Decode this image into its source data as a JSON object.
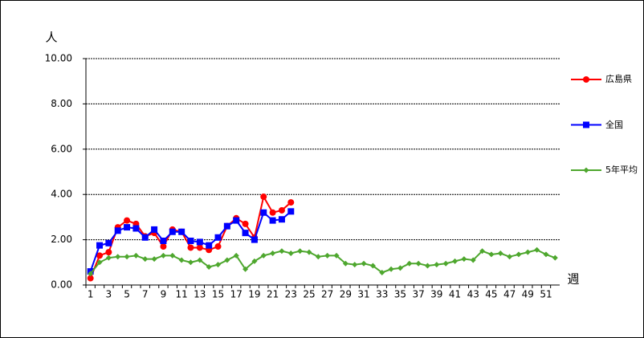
{
  "chart_data": {
    "type": "line",
    "y_label": "人",
    "x_label": "週",
    "categories": [
      1,
      null,
      3,
      null,
      5,
      null,
      7,
      null,
      9,
      null,
      11,
      null,
      13,
      null,
      15,
      null,
      17,
      null,
      19,
      null,
      21,
      null,
      23,
      null,
      25,
      null,
      27,
      null,
      29,
      null,
      31,
      null,
      33,
      null,
      35,
      null,
      37,
      null,
      39,
      null,
      41,
      null,
      43,
      null,
      45,
      null,
      47,
      null,
      49,
      null,
      51,
      null
    ],
    "ylim": [
      0,
      10
    ],
    "yticks": [
      {
        "value": 0,
        "label": "0.00"
      },
      {
        "value": 2,
        "label": "2.00"
      },
      {
        "value": 4,
        "label": "4.00"
      },
      {
        "value": 6,
        "label": "6.00"
      },
      {
        "value": 8,
        "label": "8.00"
      },
      {
        "value": 10,
        "label": "10.00"
      }
    ],
    "grid": true,
    "legend": "right",
    "series": [
      {
        "name": "広島県",
        "color": "#ff0000",
        "marker": "circle",
        "values": [
          0.3,
          1.3,
          1.45,
          2.55,
          2.85,
          2.7,
          2.15,
          2.3,
          1.7,
          2.45,
          2.35,
          1.65,
          1.65,
          1.55,
          1.7,
          2.6,
          2.95,
          2.7,
          2.1,
          3.9,
          3.2,
          3.3,
          3.65,
          null,
          null,
          null,
          null,
          null,
          null,
          null,
          null,
          null,
          null,
          null,
          null,
          null,
          null,
          null,
          null,
          null,
          null,
          null,
          null,
          null,
          null,
          null,
          null,
          null,
          null,
          null,
          null,
          null
        ]
      },
      {
        "name": "全国",
        "color": "#0000ff",
        "marker": "square",
        "values": [
          0.6,
          1.75,
          1.85,
          2.4,
          2.55,
          2.5,
          2.1,
          2.45,
          1.95,
          2.35,
          2.35,
          1.95,
          1.9,
          1.75,
          2.1,
          2.6,
          2.85,
          2.3,
          2.0,
          3.2,
          2.85,
          2.9,
          3.25,
          null,
          null,
          null,
          null,
          null,
          null,
          null,
          null,
          null,
          null,
          null,
          null,
          null,
          null,
          null,
          null,
          null,
          null,
          null,
          null,
          null,
          null,
          null,
          null,
          null,
          null,
          null,
          null,
          null
        ]
      },
      {
        "name": "5年平均",
        "color": "#4ea72e",
        "marker": "diamond",
        "values": [
          0.5,
          1.0,
          1.2,
          1.25,
          1.25,
          1.3,
          1.15,
          1.15,
          1.3,
          1.3,
          1.1,
          1.0,
          1.1,
          0.8,
          0.9,
          1.1,
          1.3,
          0.7,
          1.05,
          1.3,
          1.4,
          1.5,
          1.4,
          1.5,
          1.45,
          1.25,
          1.3,
          1.3,
          0.95,
          0.9,
          0.95,
          0.85,
          0.55,
          0.7,
          0.75,
          0.95,
          0.95,
          0.85,
          0.9,
          0.95,
          1.05,
          1.15,
          1.1,
          1.5,
          1.35,
          1.4,
          1.25,
          1.35,
          1.45,
          1.55,
          1.35,
          1.2
        ]
      }
    ]
  }
}
